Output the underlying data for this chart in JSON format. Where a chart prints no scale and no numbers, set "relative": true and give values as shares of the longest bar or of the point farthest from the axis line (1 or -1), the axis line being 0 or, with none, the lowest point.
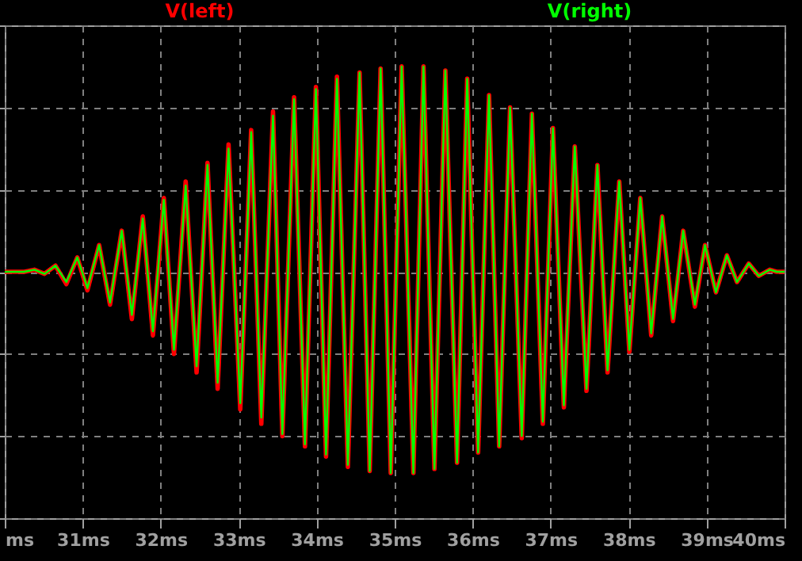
{
  "chart_data": {
    "type": "line",
    "relative": true,
    "x": [
      30,
      30.25,
      30.38,
      30.51,
      30.65,
      30.79,
      30.93,
      31.06,
      31.21,
      31.35,
      31.5,
      31.63,
      31.77,
      31.9,
      32.04,
      32.17,
      32.32,
      32.46,
      32.6,
      32.73,
      32.87,
      33.02,
      33.16,
      33.29,
      33.44,
      33.56,
      33.71,
      33.85,
      33.99,
      34.12,
      34.26,
      34.4,
      34.55,
      34.68,
      34.82,
      34.95,
      35.09,
      35.24,
      35.37,
      35.51,
      35.65,
      35.8,
      35.93,
      36.07,
      36.21,
      36.34,
      36.48,
      36.63,
      36.76,
      36.9,
      37.03,
      37.17,
      37.31,
      37.46,
      37.6,
      37.73,
      37.88,
      38.01,
      38.15,
      38.29,
      38.43,
      38.57,
      38.7,
      38.85,
      38.98,
      39.12,
      39.26,
      39.39,
      39.54,
      39.67,
      39.81,
      39.9,
      40
    ],
    "series": [
      {
        "name": "V(left)",
        "color": "#ff0000",
        "values": [
          0,
          0,
          0.01,
          -0.01,
          0.03,
          -0.06,
          0.07,
          -0.09,
          0.13,
          -0.16,
          0.2,
          -0.23,
          0.27,
          -0.31,
          0.36,
          -0.4,
          0.44,
          -0.49,
          0.53,
          -0.57,
          0.62,
          -0.67,
          0.69,
          -0.74,
          0.78,
          -0.8,
          0.85,
          -0.85,
          0.9,
          -0.9,
          0.95,
          -0.95,
          0.97,
          -0.97,
          0.99,
          -0.98,
          1,
          -0.98,
          1,
          -0.96,
          0.98,
          -0.93,
          0.94,
          -0.88,
          0.86,
          -0.85,
          0.8,
          -0.81,
          0.77,
          -0.74,
          0.7,
          -0.66,
          0.61,
          -0.58,
          0.52,
          -0.49,
          0.44,
          -0.39,
          0.36,
          -0.31,
          0.27,
          -0.24,
          0.2,
          -0.17,
          0.13,
          -0.1,
          0.08,
          -0.05,
          0.04,
          -0.02,
          0.01,
          0,
          0
        ]
      },
      {
        "name": "V(right)",
        "color": "#00ff00",
        "values": [
          0,
          0,
          0.01,
          -0.01,
          0.03,
          -0.05,
          0.07,
          -0.08,
          0.13,
          -0.15,
          0.2,
          -0.21,
          0.26,
          -0.29,
          0.35,
          -0.38,
          0.42,
          -0.46,
          0.52,
          -0.54,
          0.6,
          -0.64,
          0.68,
          -0.71,
          0.76,
          -0.79,
          0.84,
          -0.84,
          0.89,
          -0.89,
          0.94,
          -0.94,
          0.97,
          -0.97,
          0.99,
          -0.98,
          1,
          -0.98,
          1,
          -0.96,
          0.98,
          -0.93,
          0.94,
          -0.88,
          0.86,
          -0.85,
          0.8,
          -0.8,
          0.77,
          -0.73,
          0.7,
          -0.65,
          0.61,
          -0.57,
          0.52,
          -0.48,
          0.44,
          -0.38,
          0.36,
          -0.3,
          0.27,
          -0.23,
          0.2,
          -0.16,
          0.13,
          -0.1,
          0.08,
          -0.05,
          0.04,
          -0.02,
          0.01,
          0,
          0
        ]
      }
    ],
    "xlim": [
      30,
      40
    ],
    "xticks": [
      {
        "value": 30,
        "label": "ms"
      },
      {
        "value": 31,
        "label": "31ms"
      },
      {
        "value": 32,
        "label": "32ms"
      },
      {
        "value": 33,
        "label": "33ms"
      },
      {
        "value": 34,
        "label": "34ms"
      },
      {
        "value": 35,
        "label": "35ms"
      },
      {
        "value": 36,
        "label": "36ms"
      },
      {
        "value": 37,
        "label": "37ms"
      },
      {
        "value": 38,
        "label": "38ms"
      },
      {
        "value": 39,
        "label": "39ms"
      },
      {
        "value": 40,
        "label": "40ms"
      }
    ],
    "tick_labels": "x",
    "grid": true,
    "legend": "top",
    "marker": "none",
    "line_style": "solid"
  }
}
